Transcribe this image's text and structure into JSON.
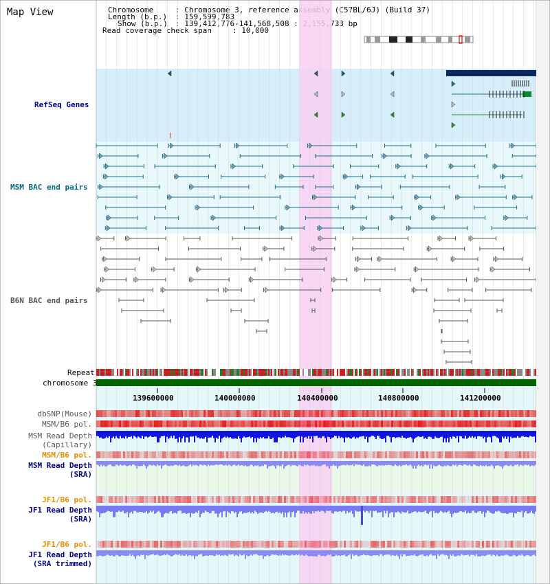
{
  "title": "Map View",
  "info": {
    "chromosome_label": "Chromosome",
    "chromosome_value": ": Chromosome 3, reference assembly (C57BL/6J) (Build 37)",
    "length_label": "Length (b.p.)",
    "length_value": ": 159,599,783",
    "show_label": "Show (b.p.)",
    "show_value": ": 139,412,776-141,568,508 : 2,155,733 bp",
    "coverage_label": "Read coverage check span",
    "coverage_value": ": 10,000"
  },
  "tracks": {
    "refseq": "RefSeq Genes",
    "msm_bac": "MSM BAC end pairs",
    "b6n_bac": "B6N BAC end pairs",
    "repeat": "Repeat",
    "chromosome": "chromosome 3",
    "dbsnp": "dbSNP(Mouse)",
    "msm_pol": "MSM/B6 pol.",
    "msm_depth_cap_1": "MSM Read Depth",
    "msm_depth_cap_2": "(Capillary)",
    "msm_pol2": "MSM/B6 pol.",
    "msm_depth_sra_1": "MSM Read Depth",
    "msm_depth_sra_2": "(SRA)",
    "jf1_pol": "JF1/B6 pol.",
    "jf1_depth_1": "JF1 Read Depth",
    "jf1_depth_2": "(SRA)",
    "jf1_pol2": "JF1/B6 pol.",
    "jf1_trim_1": "JF1 Read Depth",
    "jf1_trim_2": "(SRA trimmed)"
  },
  "axis": {
    "ticks": [
      "139600000",
      "140000000",
      "140400000",
      "140800000",
      "141200000"
    ]
  },
  "colors": {
    "refseq_bg": "#d6eef9",
    "bac_bg": "#e8f8fc",
    "highlight": "#f8d0f2",
    "msm_bac": "#1a6f8a",
    "b6n_bac": "#555555",
    "chromosome_bar": "#006400",
    "depth_blue": "#1414e0",
    "depth_light": "#7a7af0",
    "pol_red": "#f04848",
    "label_navy": "#00008b",
    "label_teal": "#00697a",
    "label_orange": "#e69000"
  }
}
